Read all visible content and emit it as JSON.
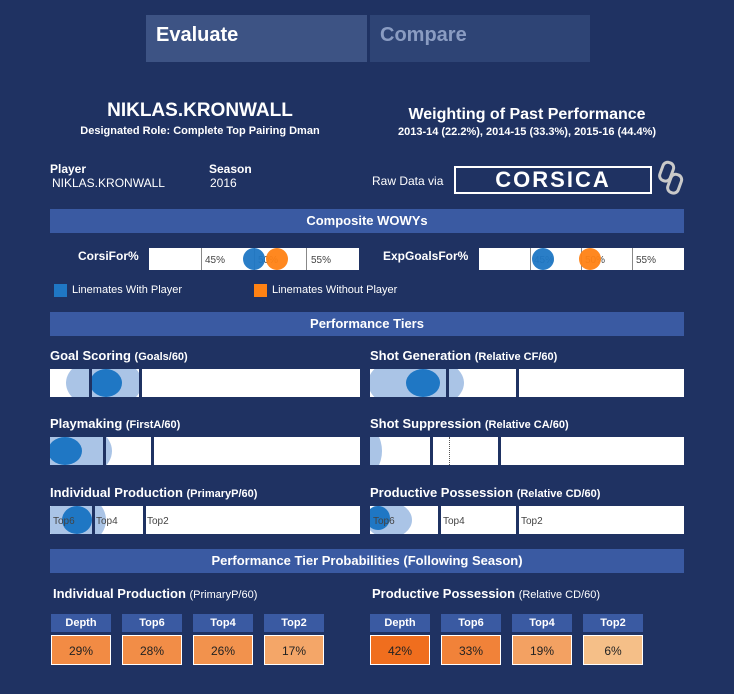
{
  "tabs": {
    "evaluate": "Evaluate",
    "compare": "Compare"
  },
  "header": {
    "player_name": "NIKLAS.KRONWALL",
    "role": "Designated Role: Complete Top Pairing Dman",
    "weighting_title": "Weighting of Past Performance",
    "weighting_detail": "2013-14 (22.2%), 2014-15 (33.3%), 2015-16 (44.4%)"
  },
  "info": {
    "player_label": "Player",
    "player_value": "NIKLAS.KRONWALL",
    "season_label": "Season",
    "season_value": "2016",
    "raw_data_label": "Raw Data via",
    "logo_text": "CORSICA"
  },
  "composite": {
    "title": "Composite WOWYs",
    "corsi_label": "CorsiFor%",
    "xg_label": "ExpGoalsFor%",
    "ticks": [
      "45%",
      "50%",
      "55%"
    ],
    "corsi": {
      "with": 50.0,
      "without": 52.2
    },
    "xg": {
      "with": 46.2,
      "without": 50.8
    },
    "axis_min": 40,
    "axis_max": 60,
    "legend_with": "Linemates With Player",
    "legend_without": "Linemates Without Player",
    "color_with": "#1f77c4",
    "color_without": "#ff8214"
  },
  "tiers": {
    "title": "Performance Tiers",
    "goal_scoring": {
      "title": "Goal Scoring",
      "sub": "(Goals/60)"
    },
    "shot_generation": {
      "title": "Shot Generation",
      "sub": "(Relative CF/60)"
    },
    "playmaking": {
      "title": "Playmaking",
      "sub": "(FirstA/60)"
    },
    "shot_suppression": {
      "title": "Shot Suppression",
      "sub": "(Relative CA/60)"
    },
    "individual_production": {
      "title": "Individual Production",
      "sub": "(PrimaryP/60)",
      "labels": [
        "Top6",
        "Top4",
        "Top2"
      ]
    },
    "productive_possession": {
      "title": "Productive Possession",
      "sub": "(Relative CD/60)",
      "labels": [
        "Top6",
        "Top4",
        "Top2"
      ]
    }
  },
  "probabilities": {
    "title": "Performance Tier Probabilities (Following Season)",
    "left": {
      "title": "Individual Production",
      "sub": "(PrimaryP/60)",
      "headers": [
        "Depth",
        "Top6",
        "Top4",
        "Top2"
      ],
      "values": [
        "29%",
        "28%",
        "26%",
        "17%"
      ]
    },
    "right": {
      "title": "Productive Possession",
      "sub": "(Relative CD/60)",
      "headers": [
        "Depth",
        "Top6",
        "Top4",
        "Top2"
      ],
      "values": [
        "42%",
        "33%",
        "19%",
        "6%"
      ]
    }
  }
}
